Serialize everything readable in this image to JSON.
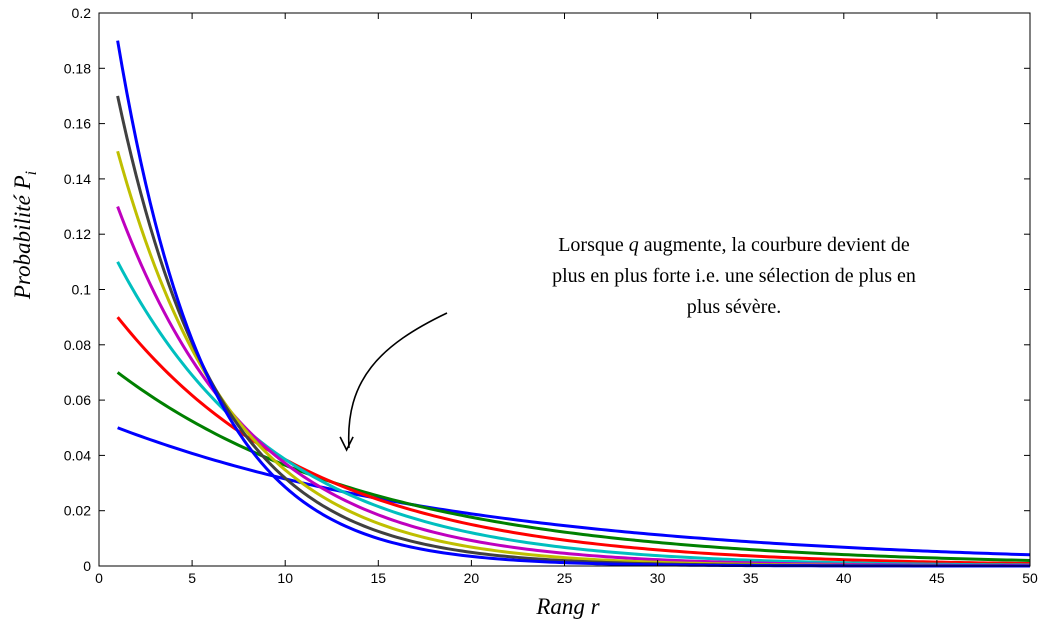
{
  "chart_data": {
    "type": "line",
    "xlabel": "Rang r",
    "ylabel_main": "Probabilité P",
    "ylabel_sub": "i",
    "xlim": [
      0,
      50
    ],
    "ylim": [
      0,
      0.2
    ],
    "xticks": [
      0,
      5,
      10,
      15,
      20,
      25,
      30,
      35,
      40,
      45,
      50
    ],
    "xtick_labels": [
      "0",
      "5",
      "10",
      "15",
      "20",
      "25",
      "30",
      "35",
      "40",
      "45",
      "50"
    ],
    "yticks": [
      0,
      0.02,
      0.04,
      0.06,
      0.08,
      0.1,
      0.12,
      0.14,
      0.16,
      0.18,
      0.2
    ],
    "ytick_labels": [
      "0",
      "0.02",
      "0.04",
      "0.06",
      "0.08",
      "0.1",
      "0.12",
      "0.14",
      "0.16",
      "0.18",
      "0.2"
    ],
    "x_range": [
      1,
      50
    ],
    "grid": false,
    "annotation": {
      "line1_pre": "Lorsque ",
      "line1_q": "q",
      "line1_post": " augmente, la courbure devient de",
      "line2": "plus en plus forte i.e. une sélection de plus en",
      "line3": "plus sévère.",
      "arrow_target": [
        13.3,
        0.042
      ]
    },
    "series": [
      {
        "q": 0.05,
        "color": "#0000ff",
        "values_at": {
          "1": 0.05,
          "10": 0.032,
          "20": 0.019,
          "50": 0.004
        }
      },
      {
        "q": 0.07,
        "color": "#008000",
        "values_at": {
          "1": 0.07,
          "10": 0.037,
          "20": 0.018,
          "50": 0.002
        }
      },
      {
        "q": 0.09,
        "color": "#ff0000",
        "values_at": {
          "1": 0.09,
          "10": 0.039,
          "20": 0.016,
          "50": 0.001
        }
      },
      {
        "q": 0.11,
        "color": "#00bfbf",
        "values_at": {
          "1": 0.11,
          "10": 0.039,
          "20": 0.012,
          "50": 0.0
        }
      },
      {
        "q": 0.13,
        "color": "#bf00bf",
        "values_at": {
          "1": 0.13,
          "10": 0.037,
          "20": 0.009,
          "50": 0.0
        }
      },
      {
        "q": 0.15,
        "color": "#bfbf00",
        "values_at": {
          "1": 0.15,
          "10": 0.035,
          "20": 0.007,
          "50": 0.0
        }
      },
      {
        "q": 0.17,
        "color": "#404040",
        "values_at": {
          "1": 0.17,
          "10": 0.031,
          "20": 0.005,
          "50": 0.0
        }
      },
      {
        "q": 0.19,
        "color": "#0000ff",
        "values_at": {
          "1": 0.19,
          "10": 0.028,
          "20": 0.004,
          "50": 0.0
        }
      }
    ]
  }
}
